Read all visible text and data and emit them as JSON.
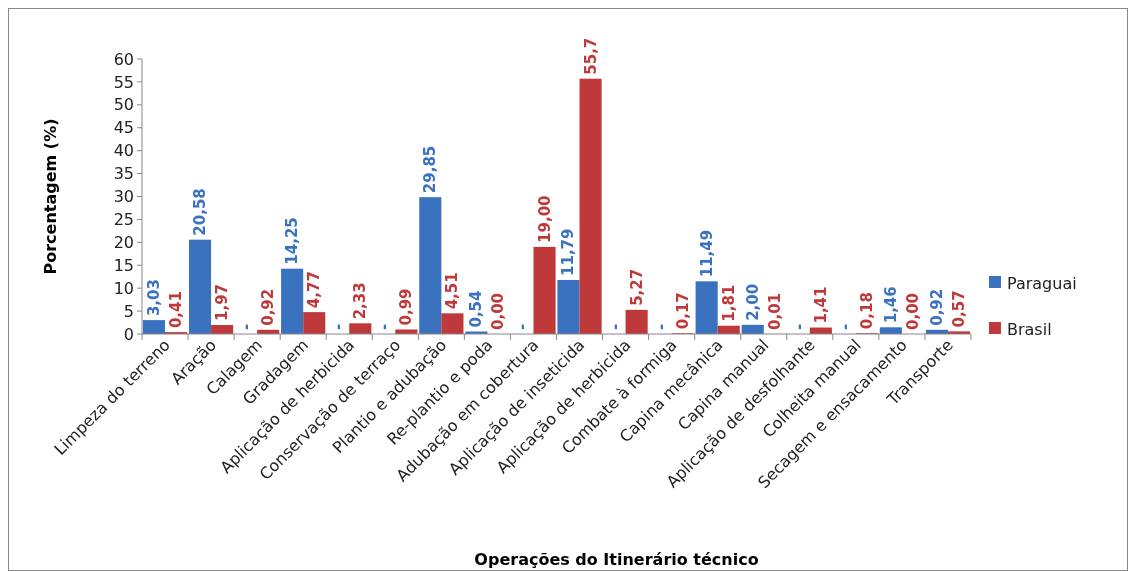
{
  "chart_data": {
    "type": "bar",
    "xlabel": "Operações do Itinerário técnico",
    "ylabel": "Porcentagem (%)",
    "categories": [
      "Limpeza do terreno",
      "Aração",
      "Calagem",
      "Gradagem",
      "Aplicação de herbicida",
      "Conservação de terraço",
      "Plantio e adubação",
      "Re-plantio e poda",
      "Adubação em cobertura",
      "Aplicação de inseticida",
      "Aplicação de herbicida",
      "Combate à formiga",
      "Capina mecânica",
      "Capina manual",
      "Aplicação de desfolhante",
      "Colheita manual",
      "Secagem e ensacamento",
      "Transporte"
    ],
    "series": [
      {
        "name": "Paraguai",
        "color": "#3a72c0",
        "values": [
          3.03,
          20.58,
          null,
          14.25,
          null,
          null,
          29.85,
          0.54,
          null,
          11.79,
          null,
          null,
          11.49,
          2.0,
          null,
          null,
          1.46,
          0.92
        ],
        "value_labels": [
          "3,03",
          "20,58",
          "-",
          "14,25",
          "-",
          "-",
          "29,85",
          "0,54",
          "-",
          "11,79",
          "-",
          "-",
          "11,49",
          "2,00",
          "-",
          "-",
          "1,46",
          "0,92"
        ]
      },
      {
        "name": "Brasil",
        "color": "#c0393a",
        "values": [
          0.41,
          1.97,
          0.92,
          4.77,
          2.33,
          0.99,
          4.51,
          0.0,
          19.0,
          55.7,
          5.27,
          0.17,
          1.81,
          0.01,
          1.41,
          0.18,
          0.0,
          0.57
        ],
        "value_labels": [
          "0,41",
          "1,97",
          "0,92",
          "4,77",
          "2,33",
          "0,99",
          "4,51",
          "0,00",
          "19,00",
          "55,7",
          "5,27",
          "0,17",
          "1,81",
          "0,01",
          "1,41",
          "0,18",
          "0,00",
          "0,57"
        ]
      }
    ],
    "ylim": [
      0,
      60
    ],
    "yticks": [
      0,
      5,
      10,
      15,
      20,
      25,
      30,
      35,
      40,
      45,
      50,
      55,
      60
    ],
    "grid": false,
    "legend": "right"
  }
}
